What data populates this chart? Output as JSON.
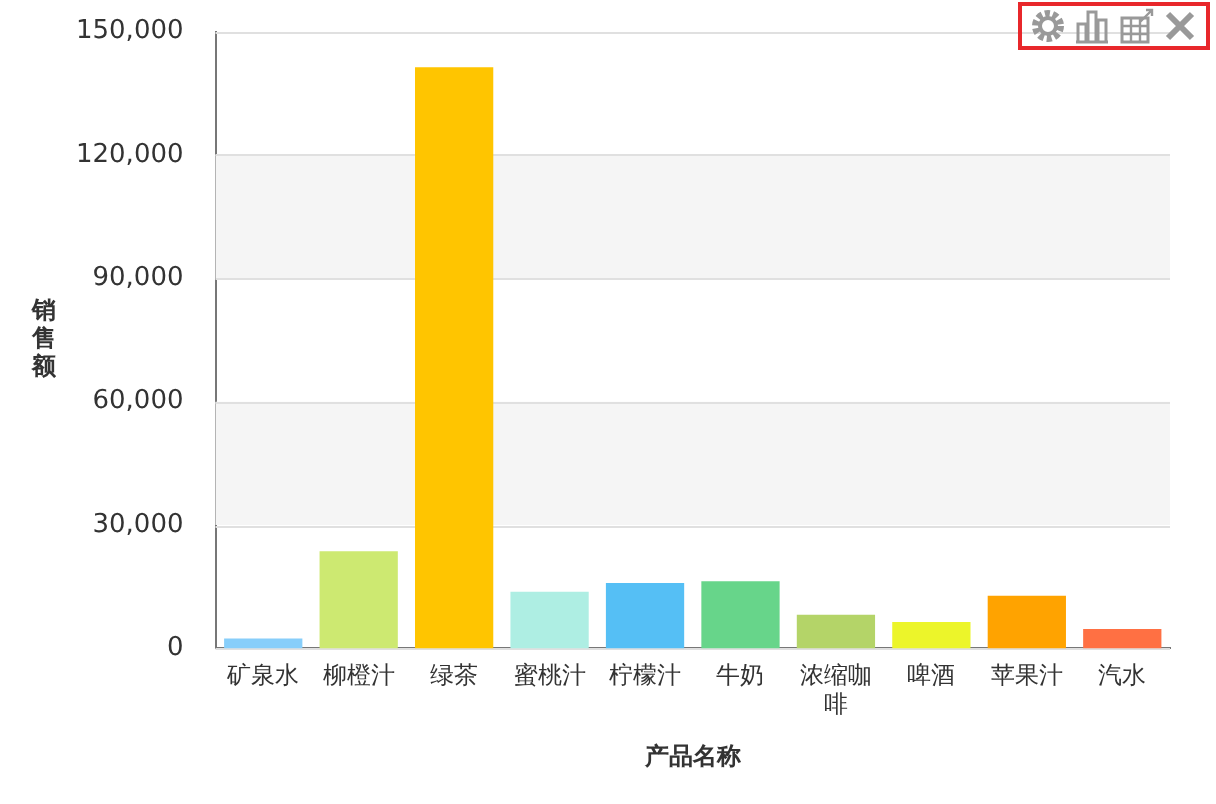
{
  "chart_data": {
    "type": "bar",
    "xlabel": "产品名称",
    "ylabel": "销售额",
    "categories": [
      "矿泉水",
      "柳橙汁",
      "绿茶",
      "蜜桃汁",
      "柠檬汁",
      "牛奶",
      "浓缩咖啡",
      "啤酒",
      "苹果汁",
      "汽水"
    ],
    "values": [
      2400,
      23600,
      141300,
      13800,
      15900,
      16300,
      8200,
      6400,
      12800,
      4700
    ],
    "colors": [
      "#87cefa",
      "#cde971",
      "#ffc500",
      "#aeeee3",
      "#55bff5",
      "#67d58a",
      "#b4d468",
      "#ecf52a",
      "#ffa300",
      "#ff7043"
    ],
    "ylim": [
      0,
      150000
    ],
    "yticks": [
      0,
      {
        "value": 30000,
        "label": "30,000"
      },
      {
        "value": 60000,
        "label": "60,000"
      },
      {
        "value": 90000,
        "label": "90,000"
      },
      {
        "value": 120000,
        "label": "120,000"
      },
      {
        "value": 150000,
        "label": "150,000"
      }
    ],
    "grid": "y"
  }
}
